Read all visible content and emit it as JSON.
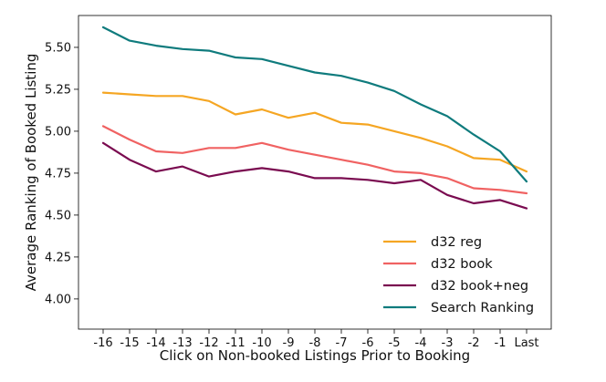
{
  "chart_data": {
    "type": "line",
    "title": "",
    "xlabel": "Click on Non-booked Listings Prior to Booking",
    "ylabel": "Average Ranking of Booked Listing",
    "categories": [
      "-16",
      "-15",
      "-14",
      "-13",
      "-12",
      "-11",
      "-10",
      "-9",
      "-8",
      "-7",
      "-6",
      "-5",
      "-4",
      "-3",
      "-2",
      "-1",
      "Last"
    ],
    "yticks": [
      "4.00",
      "4.25",
      "4.50",
      "4.75",
      "5.00",
      "5.25",
      "5.50"
    ],
    "ylim": [
      3.82,
      5.69
    ],
    "grid": false,
    "legend_position": "lower-right",
    "series": [
      {
        "name": "d32 reg",
        "color": "#f5a623",
        "values": [
          5.23,
          5.22,
          5.21,
          5.21,
          5.18,
          5.1,
          5.13,
          5.08,
          5.11,
          5.05,
          5.04,
          5.0,
          4.96,
          4.91,
          4.84,
          4.83,
          4.76
        ]
      },
      {
        "name": "d32 book",
        "color": "#f06262",
        "values": [
          5.03,
          4.95,
          4.88,
          4.87,
          4.9,
          4.9,
          4.93,
          4.89,
          4.86,
          4.83,
          4.8,
          4.76,
          4.75,
          4.72,
          4.66,
          4.65,
          4.63
        ]
      },
      {
        "name": "d32 book+neg",
        "color": "#7a0b50",
        "values": [
          4.93,
          4.83,
          4.76,
          4.79,
          4.73,
          4.76,
          4.78,
          4.76,
          4.72,
          4.72,
          4.71,
          4.69,
          4.71,
          4.62,
          4.57,
          4.59,
          4.54
        ]
      },
      {
        "name": "Search Ranking",
        "color": "#0f7b7d",
        "values": [
          5.62,
          5.54,
          5.51,
          5.49,
          5.48,
          5.44,
          5.43,
          5.39,
          5.35,
          5.33,
          5.29,
          5.24,
          5.16,
          5.09,
          4.98,
          4.88,
          4.7
        ]
      }
    ]
  }
}
